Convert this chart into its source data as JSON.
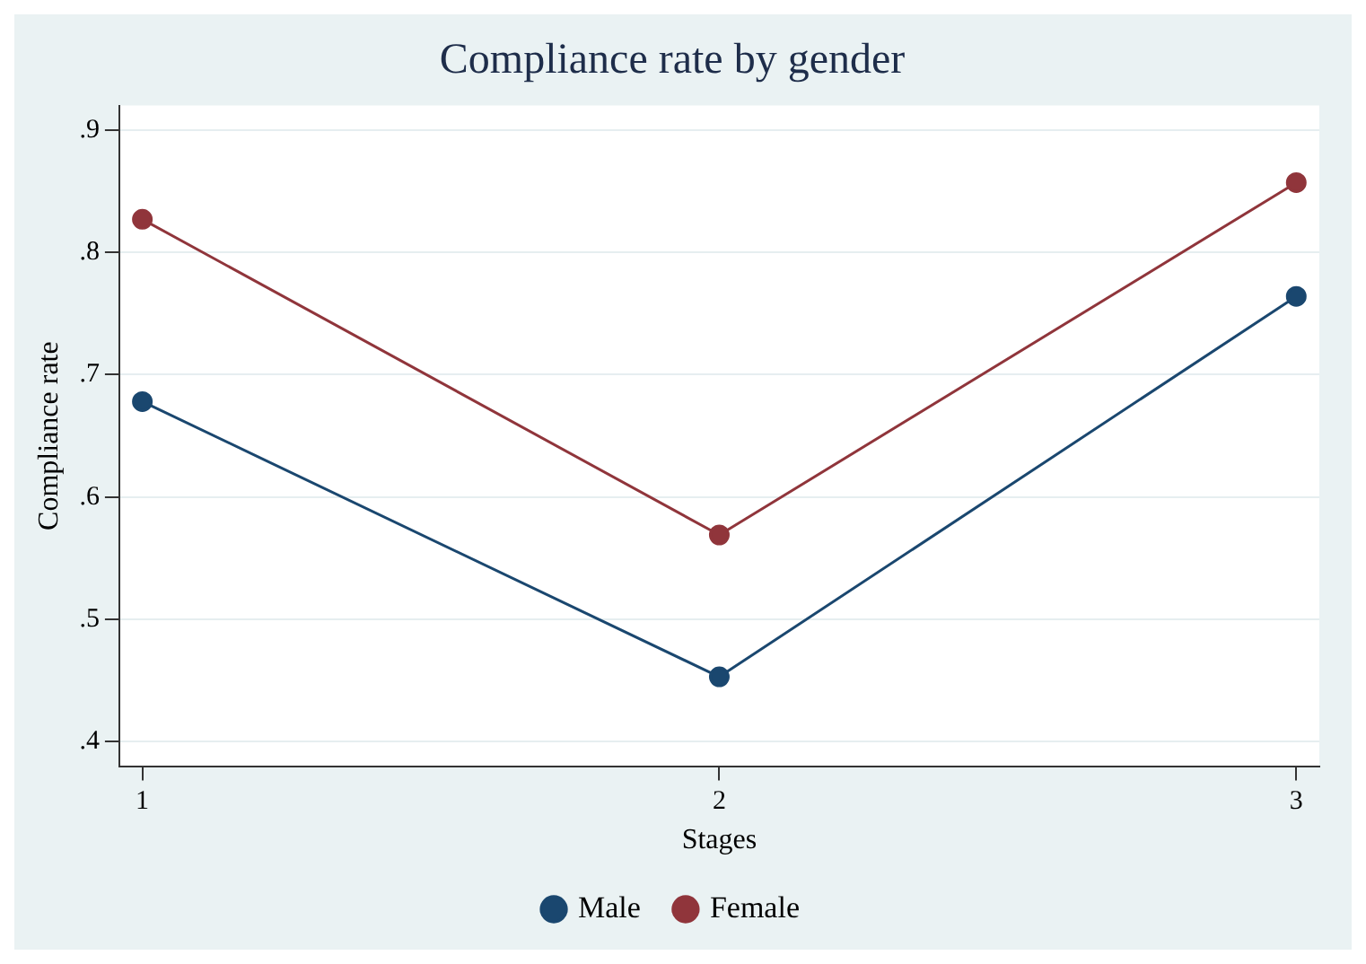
{
  "chart_data": {
    "type": "line",
    "title": "Compliance rate by gender",
    "xlabel": "Stages",
    "ylabel": "Compliance rate",
    "x": [
      1,
      2,
      3
    ],
    "series": [
      {
        "name": "Male",
        "color": "#1a476f",
        "values": [
          0.678,
          0.453,
          0.764
        ]
      },
      {
        "name": "Female",
        "color": "#90353b",
        "values": [
          0.827,
          0.569,
          0.857
        ]
      }
    ],
    "xlim": [
      0.96,
      3.04
    ],
    "xticks": [
      1,
      2,
      3
    ],
    "ylim": [
      0.38,
      0.92
    ],
    "yticks": [
      {
        "value": 0.4,
        "label": ".4"
      },
      {
        "value": 0.5,
        "label": ".5"
      },
      {
        "value": 0.6,
        "label": ".6"
      },
      {
        "value": 0.7,
        "label": ".7"
      },
      {
        "value": 0.8,
        "label": ".8"
      },
      {
        "value": 0.9,
        "label": ".9"
      }
    ],
    "grid": "y",
    "legend": "bottom",
    "marker": "circle",
    "line_style": "solid"
  }
}
